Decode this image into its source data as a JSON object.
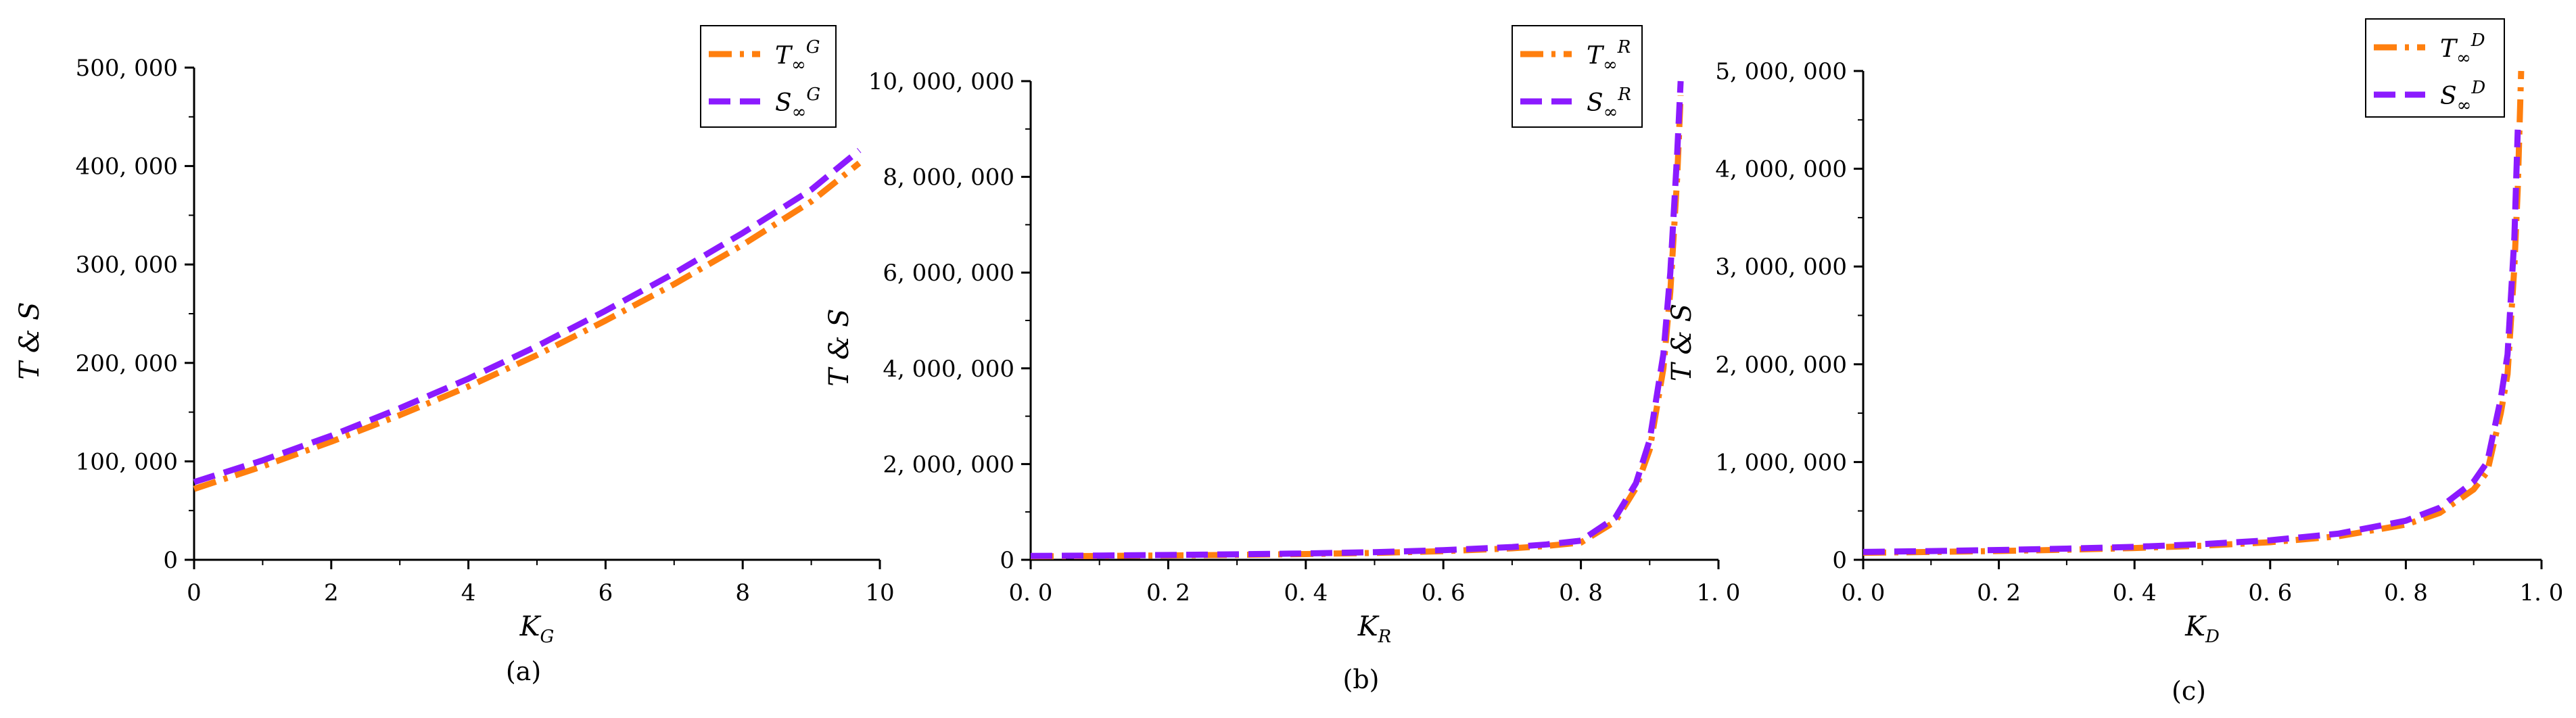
{
  "colors": {
    "T": "#ff7f0e",
    "S": "#8b1aff",
    "axis": "#000000"
  },
  "chart_data": [
    {
      "type": "line",
      "caption": "(a)",
      "xlabel": "K",
      "xlabel_sub": "G",
      "ylabel": "T & S",
      "xlim": [
        0,
        10
      ],
      "ylim": [
        0,
        500000
      ],
      "xticks": [
        0,
        2,
        4,
        6,
        8,
        10
      ],
      "xtick_labels": [
        "0",
        "2",
        "4",
        "6",
        "8",
        "10"
      ],
      "yticks": [
        0,
        100000,
        200000,
        300000,
        400000,
        500000
      ],
      "ytick_labels": [
        "0",
        "100, 000",
        "200, 000",
        "300, 000",
        "400, 000",
        "500, 000"
      ],
      "legend_position": "top-right",
      "series": [
        {
          "key": "T",
          "legend_base": "T",
          "legend_sup": "G",
          "style": "dashdot",
          "x": [
            0,
            1,
            2,
            3,
            4,
            5,
            6,
            7,
            8,
            9,
            9.7
          ],
          "y": [
            72000,
            95000,
            120000,
            147000,
            176000,
            208000,
            243000,
            280000,
            320000,
            364000,
            403000
          ]
        },
        {
          "key": "S",
          "legend_base": "S",
          "legend_sup": "G",
          "style": "dash",
          "x": [
            0,
            1,
            2,
            3,
            4,
            5,
            6,
            7,
            8,
            9,
            9.7
          ],
          "y": [
            79000,
            101000,
            126000,
            154000,
            184000,
            217000,
            253000,
            291000,
            332000,
            376000,
            416000
          ]
        }
      ]
    },
    {
      "type": "line",
      "caption": "(b)",
      "xlabel": "K",
      "xlabel_sub": "R",
      "ylabel": "T & S",
      "xlim": [
        0,
        1
      ],
      "ylim": [
        0,
        10000000
      ],
      "xticks": [
        0,
        0.2,
        0.4,
        0.6,
        0.8,
        1.0
      ],
      "xtick_labels": [
        "0. 0",
        "0. 2",
        "0. 4",
        "0. 6",
        "0. 8",
        "1. 0"
      ],
      "yticks": [
        0,
        2000000,
        4000000,
        6000000,
        8000000,
        10000000
      ],
      "ytick_labels": [
        "0",
        "2, 000, 000",
        "4, 000, 000",
        "6, 000, 000",
        "8, 000, 000",
        "10, 000, 000"
      ],
      "legend_position": "top-right",
      "series": [
        {
          "key": "T",
          "legend_base": "T",
          "legend_sup": "R",
          "style": "dashdot",
          "x": [
            0,
            0.1,
            0.2,
            0.3,
            0.4,
            0.5,
            0.6,
            0.7,
            0.75,
            0.8,
            0.85,
            0.88,
            0.9,
            0.92,
            0.93,
            0.94,
            0.945
          ],
          "y": [
            72000,
            80000,
            90000,
            103000,
            120000,
            144000,
            180000,
            240000,
            290000,
            360000,
            800000,
            1500000,
            2300000,
            4000000,
            5600000,
            8000000,
            9700000
          ]
        },
        {
          "key": "S",
          "legend_base": "S",
          "legend_sup": "R",
          "style": "dash",
          "x": [
            0,
            0.1,
            0.2,
            0.3,
            0.4,
            0.5,
            0.6,
            0.7,
            0.75,
            0.8,
            0.85,
            0.88,
            0.9,
            0.92,
            0.93,
            0.94,
            0.945
          ],
          "y": [
            80000,
            89000,
            100000,
            114000,
            133000,
            160000,
            200000,
            267000,
            320000,
            400000,
            880000,
            1600000,
            2500000,
            4300000,
            6000000,
            8500000,
            10000000
          ]
        }
      ]
    },
    {
      "type": "line",
      "caption": "(c)",
      "xlabel": "K",
      "xlabel_sub": "D",
      "ylabel": "T & S",
      "xlim": [
        0,
        1
      ],
      "ylim": [
        0,
        5000000
      ],
      "xticks": [
        0,
        0.2,
        0.4,
        0.6,
        0.8,
        1.0
      ],
      "xtick_labels": [
        "0. 0",
        "0. 2",
        "0. 4",
        "0. 6",
        "0. 8",
        "1. 0"
      ],
      "yticks": [
        0,
        1000000,
        2000000,
        3000000,
        4000000,
        5000000
      ],
      "ytick_labels": [
        "0",
        "1, 000, 000",
        "2, 000, 000",
        "3, 000, 000",
        "4, 000, 000",
        "5, 000, 000"
      ],
      "legend_position": "top-right",
      "series": [
        {
          "key": "T",
          "legend_base": "T",
          "legend_sup": "D",
          "style": "dashdot",
          "x": [
            0,
            0.1,
            0.2,
            0.3,
            0.4,
            0.5,
            0.6,
            0.7,
            0.8,
            0.85,
            0.9,
            0.92,
            0.94,
            0.95,
            0.96,
            0.965,
            0.97
          ],
          "y": [
            72000,
            80000,
            90000,
            103000,
            120000,
            144000,
            180000,
            240000,
            360000,
            480000,
            720000,
            900000,
            1500000,
            1900000,
            3000000,
            3800000,
            5000000
          ]
        },
        {
          "key": "S",
          "legend_base": "S",
          "legend_sup": "D",
          "style": "dash",
          "x": [
            0,
            0.1,
            0.2,
            0.3,
            0.4,
            0.5,
            0.6,
            0.7,
            0.8,
            0.85,
            0.9,
            0.92,
            0.94,
            0.95,
            0.96,
            0.965
          ],
          "y": [
            80000,
            89000,
            100000,
            114000,
            133000,
            160000,
            200000,
            267000,
            400000,
            533000,
            800000,
            1000000,
            1650000,
            2100000,
            3300000,
            4400000
          ]
        }
      ]
    }
  ]
}
